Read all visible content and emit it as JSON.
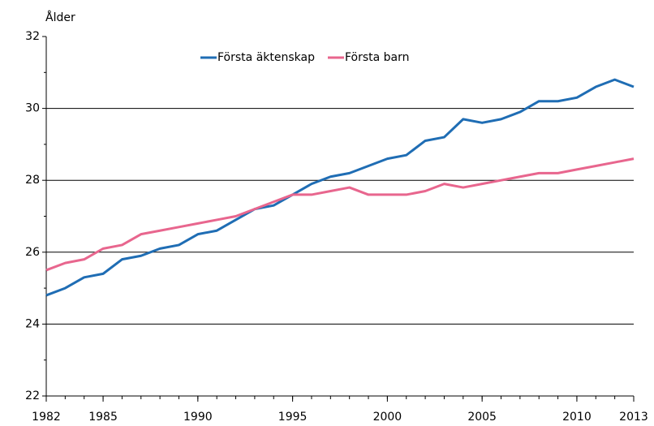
{
  "chart_data": {
    "type": "line",
    "y_label": "Ålder",
    "x": [
      1982,
      1983,
      1984,
      1985,
      1986,
      1987,
      1988,
      1989,
      1990,
      1991,
      1992,
      1993,
      1994,
      1995,
      1996,
      1997,
      1998,
      1999,
      2000,
      2001,
      2002,
      2003,
      2004,
      2005,
      2006,
      2007,
      2008,
      2009,
      2010,
      2011,
      2012,
      2013
    ],
    "series": [
      {
        "name": "Första äktenskap",
        "color": "#1f6db4",
        "values": [
          24.8,
          25.0,
          25.3,
          25.4,
          25.8,
          25.9,
          26.1,
          26.2,
          26.5,
          26.6,
          26.9,
          27.2,
          27.3,
          27.6,
          27.9,
          28.1,
          28.2,
          28.4,
          28.6,
          28.7,
          29.1,
          29.2,
          29.7,
          29.6,
          29.7,
          29.9,
          30.2,
          30.2,
          30.3,
          30.6,
          30.8,
          30.6
        ]
      },
      {
        "name": "Första barn",
        "color": "#e8668e",
        "values": [
          25.5,
          25.7,
          25.8,
          26.1,
          26.2,
          26.5,
          26.6,
          26.7,
          26.8,
          26.9,
          27.0,
          27.2,
          27.4,
          27.6,
          27.6,
          27.7,
          27.8,
          27.6,
          27.6,
          27.6,
          27.7,
          27.9,
          27.8,
          27.9,
          28.0,
          28.1,
          28.2,
          28.2,
          28.3,
          28.4,
          28.5,
          28.6
        ]
      }
    ],
    "xlim": [
      1982,
      2013
    ],
    "xticks": [
      1982,
      1985,
      1990,
      1995,
      2000,
      2005,
      2010,
      2013
    ],
    "ylim": [
      22,
      32
    ],
    "yticks": [
      22,
      24,
      26,
      28,
      30,
      32
    ],
    "grid": true,
    "legend": "top"
  }
}
